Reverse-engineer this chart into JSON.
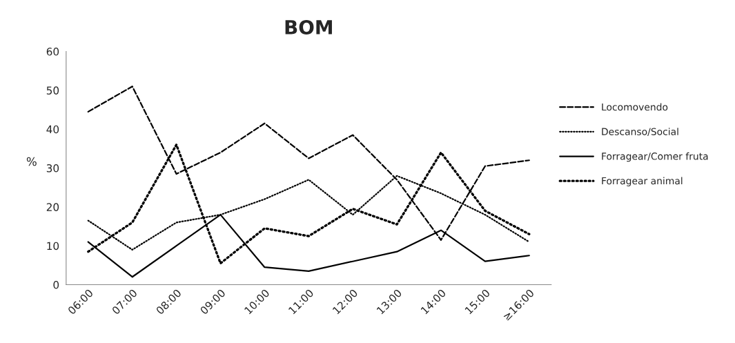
{
  "chart_data": {
    "type": "line",
    "title": "BOM",
    "ylabel": "%",
    "categories": [
      "06:00",
      "07:00",
      "08:00",
      "09:00",
      "10:00",
      "11:00",
      "12:00",
      "13:00",
      "14:00",
      "15:00",
      "≥16:00"
    ],
    "series": [
      {
        "name": "Locomovendo",
        "color": "#000000",
        "line_style": "dashed",
        "values": [
          44.5,
          51,
          28.5,
          34,
          41.5,
          32.5,
          38.5,
          27,
          11.5,
          30.5,
          32
        ]
      },
      {
        "name": "Descanso/Social",
        "color": "#000000",
        "line_style": "dotted",
        "values": [
          16.5,
          9,
          16,
          18,
          22,
          27,
          18,
          28,
          23.5,
          18,
          11
        ]
      },
      {
        "name": "Forragear/Comer fruta",
        "color": "#000000",
        "line_style": "solid",
        "values": [
          11,
          2,
          10,
          18,
          4.5,
          3.5,
          6,
          8.5,
          14,
          6,
          7.5
        ]
      },
      {
        "name": "Forragear animal",
        "color": "#000000",
        "line_style": "dotted",
        "values": [
          8.5,
          16,
          36,
          5.5,
          14.5,
          12.5,
          19.5,
          15.5,
          34,
          19,
          13
        ]
      }
    ],
    "ylim": [
      0,
      60
    ],
    "yticks": [
      0,
      10,
      20,
      30,
      40,
      50,
      60
    ],
    "grid": false,
    "legend": "right",
    "marker": "none"
  }
}
